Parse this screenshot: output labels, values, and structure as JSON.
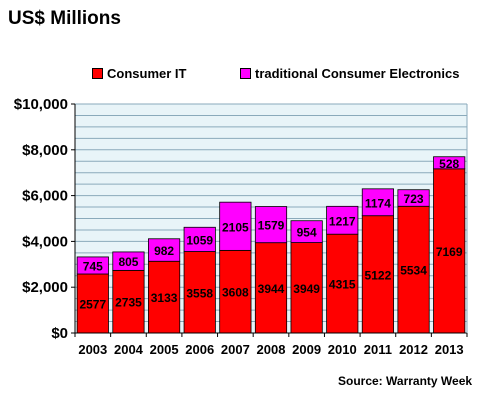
{
  "chart_data": {
    "type": "bar",
    "stacked": true,
    "title": "US$ Millions",
    "source": "Source: Warranty Week",
    "categories": [
      "2003",
      "2004",
      "2005",
      "2006",
      "2007",
      "2008",
      "2009",
      "2010",
      "2011",
      "2012",
      "2013"
    ],
    "series": [
      {
        "name": "Consumer IT",
        "color": "#ff0000",
        "values": [
          2577,
          2735,
          3133,
          3558,
          3608,
          3944,
          3949,
          4315,
          5122,
          5534,
          7169
        ]
      },
      {
        "name": "traditional Consumer Electronics",
        "color": "#ff00ff",
        "values": [
          745,
          805,
          982,
          1059,
          2105,
          1579,
          954,
          1217,
          1174,
          723,
          528
        ]
      }
    ],
    "yticks": [
      "$0",
      "$2,000",
      "$4,000",
      "$6,000",
      "$8,000",
      "$10,000"
    ],
    "ylim": [
      0,
      10000
    ],
    "grid": true,
    "legend_position": "top"
  }
}
